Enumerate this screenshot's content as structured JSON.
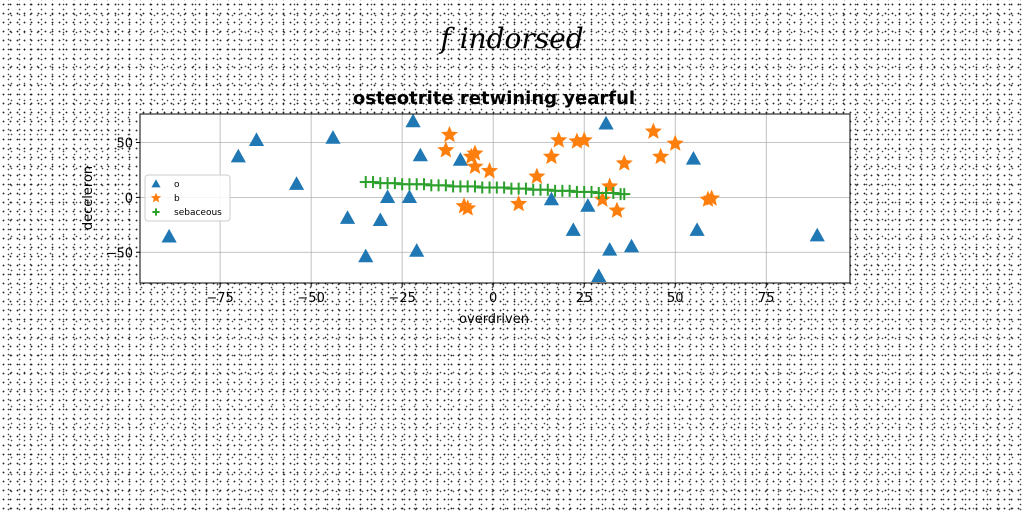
{
  "suptitle": "f indorsed",
  "chart_data": {
    "type": "scatter",
    "title": "osteotrite retwining yearful",
    "xlabel": "overdriven",
    "ylabel": "deceleron",
    "xlim": [
      -97,
      98
    ],
    "ylim": [
      -78,
      76
    ],
    "xticks": [
      -75,
      -50,
      -25,
      0,
      25,
      50,
      75
    ],
    "yticks": [
      -50,
      0,
      50
    ],
    "grid": true,
    "legend_position": "center-left",
    "series": [
      {
        "name": "o",
        "marker": "triangle",
        "color": "#1f77b4",
        "points": [
          [
            -89,
            -36
          ],
          [
            -70,
            37
          ],
          [
            -65,
            52
          ],
          [
            -54,
            12
          ],
          [
            -44,
            54
          ],
          [
            -40,
            -19
          ],
          [
            -35,
            -54
          ],
          [
            -31,
            -21
          ],
          [
            -29,
            0
          ],
          [
            -23,
            0
          ],
          [
            -22,
            69
          ],
          [
            -21,
            -49
          ],
          [
            -20,
            38
          ],
          [
            -9,
            34
          ],
          [
            16,
            -2
          ],
          [
            22,
            -30
          ],
          [
            26,
            -8
          ],
          [
            29,
            -72
          ],
          [
            31,
            67
          ],
          [
            32,
            -48
          ],
          [
            38,
            -45
          ],
          [
            55,
            35
          ],
          [
            56,
            -30
          ],
          [
            89,
            -35
          ]
        ]
      },
      {
        "name": "b",
        "marker": "star",
        "color": "#ff7f0e",
        "points": [
          [
            -13,
            43
          ],
          [
            -12,
            57
          ],
          [
            -8,
            -8
          ],
          [
            -7,
            -10
          ],
          [
            -6,
            37
          ],
          [
            -5,
            40
          ],
          [
            -5,
            28
          ],
          [
            -1,
            24
          ],
          [
            7,
            -6
          ],
          [
            12,
            19
          ],
          [
            16,
            37
          ],
          [
            18,
            52
          ],
          [
            23,
            51
          ],
          [
            25,
            52
          ],
          [
            30,
            -2
          ],
          [
            32,
            10
          ],
          [
            34,
            -12
          ],
          [
            36,
            31
          ],
          [
            44,
            60
          ],
          [
            46,
            37
          ],
          [
            50,
            49
          ],
          [
            59,
            -2
          ],
          [
            60,
            -1
          ]
        ]
      },
      {
        "name": "sebaceous",
        "marker": "plus",
        "color": "#2ca02c",
        "points": [
          [
            -35,
            14
          ],
          [
            -33,
            14
          ],
          [
            -31,
            13
          ],
          [
            -29,
            13
          ],
          [
            -27,
            13
          ],
          [
            -25,
            12
          ],
          [
            -23,
            12
          ],
          [
            -21,
            12
          ],
          [
            -19,
            12
          ],
          [
            -17,
            11
          ],
          [
            -15,
            11
          ],
          [
            -13,
            11
          ],
          [
            -11,
            10
          ],
          [
            -9,
            10
          ],
          [
            -7,
            10
          ],
          [
            -5,
            10
          ],
          [
            -3,
            9
          ],
          [
            -1,
            9
          ],
          [
            1,
            9
          ],
          [
            3,
            9
          ],
          [
            5,
            8
          ],
          [
            7,
            8
          ],
          [
            9,
            8
          ],
          [
            11,
            7
          ],
          [
            13,
            7
          ],
          [
            15,
            7
          ],
          [
            17,
            6
          ],
          [
            19,
            6
          ],
          [
            21,
            6
          ],
          [
            23,
            5
          ],
          [
            25,
            5
          ],
          [
            27,
            5
          ],
          [
            29,
            4
          ],
          [
            31,
            4
          ],
          [
            33,
            4
          ],
          [
            35,
            3
          ],
          [
            36,
            3
          ]
        ]
      }
    ]
  }
}
